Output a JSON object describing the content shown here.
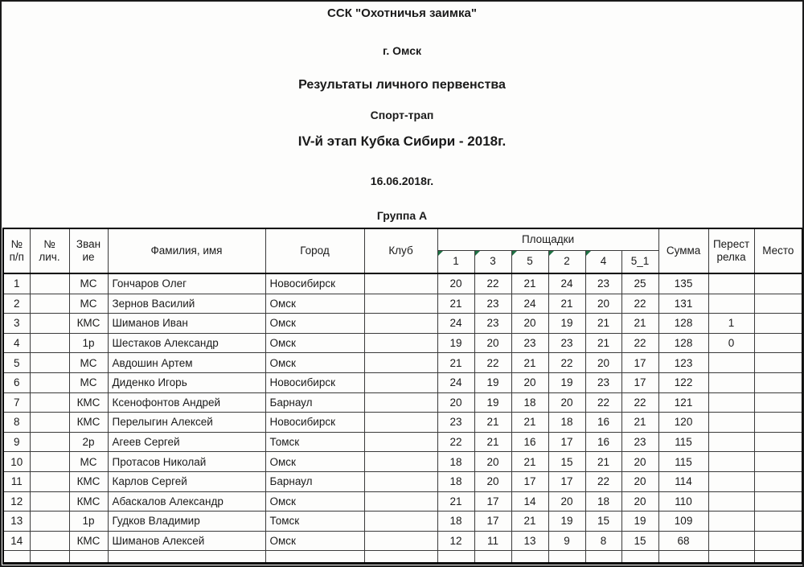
{
  "page": {
    "club_title": "ССК \"Охотничья заимка\"",
    "city": "г. Омск",
    "main_title": "Результаты личного первенства",
    "discipline": "Спорт-трап",
    "stage": "IV-й этап Кубка Сибири - 2018г.",
    "date": "16.06.2018г.",
    "group": "Группа А"
  },
  "table": {
    "headers": {
      "num": "№\nп/п",
      "num_personal": "№\nлич.",
      "rank": "Зван\nие",
      "name": "Фамилия, имя",
      "city": "Город",
      "club": "Клуб",
      "stations_group": "Площадки",
      "stations": [
        {
          "label": "1",
          "flagged": true
        },
        {
          "label": "3",
          "flagged": true
        },
        {
          "label": "5",
          "flagged": true
        },
        {
          "label": "2",
          "flagged": true
        },
        {
          "label": "4",
          "flagged": true
        },
        {
          "label": "5_1",
          "flagged": false
        }
      ],
      "sum": "Сумма",
      "shootoff": "Перест\nрелка",
      "place": "Место"
    },
    "rows": [
      {
        "n": "1",
        "num_personal": "",
        "rank": "МС",
        "name": "Гончаров Олег",
        "city": "Новосибирск",
        "club": "",
        "scores": [
          "20",
          "22",
          "21",
          "24",
          "23",
          "25"
        ],
        "sum": "135",
        "shootoff": "",
        "place": ""
      },
      {
        "n": "2",
        "num_personal": "",
        "rank": "МС",
        "name": "Зернов Василий",
        "city": "Омск",
        "club": "",
        "scores": [
          "21",
          "23",
          "24",
          "21",
          "20",
          "22"
        ],
        "sum": "131",
        "shootoff": "",
        "place": ""
      },
      {
        "n": "3",
        "num_personal": "",
        "rank": "КМС",
        "name": "Шиманов Иван",
        "city": "Омск",
        "club": "",
        "scores": [
          "24",
          "23",
          "20",
          "19",
          "21",
          "21"
        ],
        "sum": "128",
        "shootoff": "1",
        "place": ""
      },
      {
        "n": "4",
        "num_personal": "",
        "rank": "1р",
        "name": "Шестаков Александр",
        "city": "Омск",
        "club": "",
        "scores": [
          "19",
          "20",
          "23",
          "23",
          "21",
          "22"
        ],
        "sum": "128",
        "shootoff": "0",
        "place": ""
      },
      {
        "n": "5",
        "num_personal": "",
        "rank": "МС",
        "name": "Авдошин Артем",
        "city": "Омск",
        "club": "",
        "scores": [
          "21",
          "22",
          "21",
          "22",
          "20",
          "17"
        ],
        "sum": "123",
        "shootoff": "",
        "place": ""
      },
      {
        "n": "6",
        "num_personal": "",
        "rank": "МС",
        "name": "Диденко Игорь",
        "city": "Новосибирск",
        "club": "",
        "scores": [
          "24",
          "19",
          "20",
          "19",
          "23",
          "17"
        ],
        "sum": "122",
        "shootoff": "",
        "place": ""
      },
      {
        "n": "7",
        "num_personal": "",
        "rank": "КМС",
        "name": "Ксенофонтов Андрей",
        "city": "Барнаул",
        "club": "",
        "scores": [
          "20",
          "19",
          "18",
          "20",
          "22",
          "22"
        ],
        "sum": "121",
        "shootoff": "",
        "place": ""
      },
      {
        "n": "8",
        "num_personal": "",
        "rank": "КМС",
        "name": "Перелыгин Алексей",
        "city": "Новосибирск",
        "club": "",
        "scores": [
          "23",
          "21",
          "21",
          "18",
          "16",
          "21"
        ],
        "sum": "120",
        "shootoff": "",
        "place": ""
      },
      {
        "n": "9",
        "num_personal": "",
        "rank": "2р",
        "name": "Агеев Сергей",
        "city": "Томск",
        "club": "",
        "scores": [
          "22",
          "21",
          "16",
          "17",
          "16",
          "23"
        ],
        "sum": "115",
        "shootoff": "",
        "place": ""
      },
      {
        "n": "10",
        "num_personal": "",
        "rank": "МС",
        "name": "Протасов Николай",
        "city": "Омск",
        "club": "",
        "scores": [
          "18",
          "20",
          "21",
          "15",
          "21",
          "20"
        ],
        "sum": "115",
        "shootoff": "",
        "place": ""
      },
      {
        "n": "11",
        "num_personal": "",
        "rank": "КМС",
        "name": "Карлов Сергей",
        "city": "Барнаул",
        "club": "",
        "scores": [
          "18",
          "20",
          "17",
          "17",
          "22",
          "20"
        ],
        "sum": "114",
        "shootoff": "",
        "place": ""
      },
      {
        "n": "12",
        "num_personal": "",
        "rank": "КМС",
        "name": "Абаскалов Александр",
        "city": "Омск",
        "club": "",
        "scores": [
          "21",
          "17",
          "14",
          "20",
          "18",
          "20"
        ],
        "sum": "110",
        "shootoff": "",
        "place": ""
      },
      {
        "n": "13",
        "num_personal": "",
        "rank": "1р",
        "name": "Гудков Владимир",
        "city": "Томск",
        "club": "",
        "scores": [
          "18",
          "17",
          "21",
          "19",
          "15",
          "19"
        ],
        "sum": "109",
        "shootoff": "",
        "place": ""
      },
      {
        "n": "14",
        "num_personal": "",
        "rank": "КМС",
        "name": "Шиманов Алексей",
        "city": "Омск",
        "club": "",
        "scores": [
          "12",
          "11",
          "13",
          "9",
          "8",
          "15"
        ],
        "sum": "68",
        "shootoff": "",
        "place": ""
      },
      {
        "n": "",
        "num_personal": "",
        "rank": "",
        "name": "",
        "city": "",
        "club": "",
        "scores": [
          "",
          "",
          "",
          "",
          "",
          ""
        ],
        "sum": "",
        "shootoff": "",
        "place": ""
      }
    ]
  },
  "colors": {
    "flag_green": "#1f7244"
  },
  "icons": {
    "flag_triangle": "excel number-stored-as-text corner triangle"
  }
}
